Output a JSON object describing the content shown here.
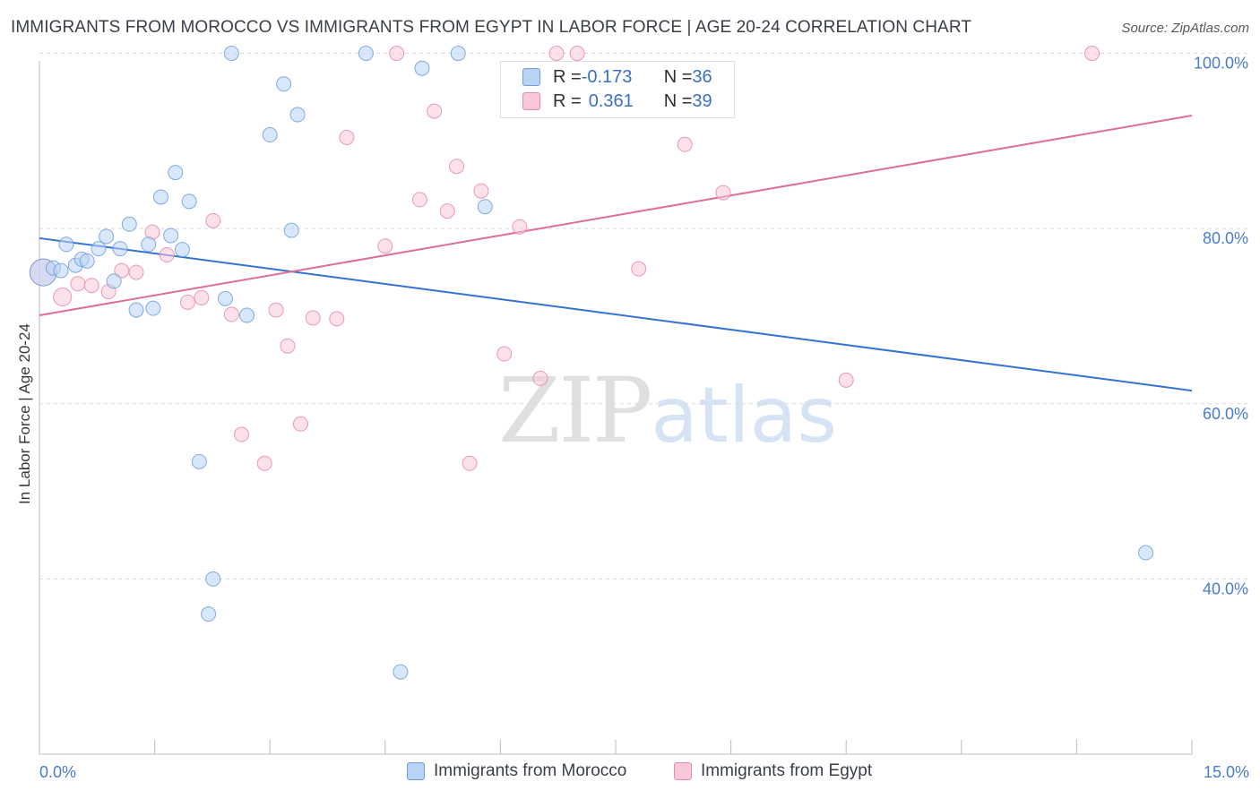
{
  "header": {
    "title": "IMMIGRANTS FROM MOROCCO VS IMMIGRANTS FROM EGYPT IN LABOR FORCE | AGE 20-24 CORRELATION CHART",
    "source": "Source: ZipAtlas.com"
  },
  "watermark": {
    "zip": "ZIP",
    "atlas": "atlas"
  },
  "stats": {
    "morocco": {
      "r_label": "R = ",
      "r_value": "-0.173",
      "n_label": "N = ",
      "n_value": "36"
    },
    "egypt": {
      "r_label": "R = ",
      "r_value": "0.361",
      "n_label": "N = ",
      "n_value": "39"
    }
  },
  "legend": {
    "morocco": "Immigrants from Morocco",
    "egypt": "Immigrants from Egypt"
  },
  "colors": {
    "morocco_fill": "#b9d3f5",
    "morocco_stroke": "#6f9edb",
    "morocco_line": "#3472d3",
    "egypt_fill": "#f8c8d8",
    "egypt_stroke": "#e88aa8",
    "egypt_line": "#e06e95",
    "tick_label": "#4a7cc9",
    "grid": "#d9dce1"
  },
  "chart_data": {
    "type": "scatter",
    "ylabel": "In Labor Force | Age 20-24",
    "xlim": [
      0,
      15
    ],
    "ylim": [
      20,
      102
    ],
    "x_tick_labels": {
      "min": "0.0%",
      "max": "15.0%"
    },
    "y_ticks": [
      {
        "value": 40,
        "label": "40.0%"
      },
      {
        "value": 60,
        "label": "60.0%"
      },
      {
        "value": 80,
        "label": "80.0%"
      },
      {
        "value": 100,
        "label": "100.0%"
      }
    ],
    "grid": "horizontal-dashed",
    "legend_position": "bottom",
    "series": [
      {
        "name": "Immigrants from Morocco",
        "key": "morocco",
        "trend": {
          "x": [
            0,
            15
          ],
          "y": [
            78.9,
            61.5
          ]
        },
        "points": [
          [
            0.05,
            75.0
          ],
          [
            0.18,
            75.5
          ],
          [
            0.28,
            75.2
          ],
          [
            0.35,
            78.2
          ],
          [
            0.47,
            75.8
          ],
          [
            0.55,
            76.5
          ],
          [
            0.62,
            76.3
          ],
          [
            0.87,
            79.1
          ],
          [
            0.77,
            77.7
          ],
          [
            0.97,
            74.0
          ],
          [
            1.05,
            77.7
          ],
          [
            1.17,
            80.5
          ],
          [
            1.26,
            70.7
          ],
          [
            1.42,
            78.2
          ],
          [
            1.48,
            70.9
          ],
          [
            1.58,
            83.6
          ],
          [
            1.71,
            79.2
          ],
          [
            1.77,
            86.4
          ],
          [
            1.86,
            77.6
          ],
          [
            1.95,
            83.1
          ],
          [
            2.08,
            53.4
          ],
          [
            2.26,
            40.0
          ],
          [
            2.2,
            36.0
          ],
          [
            2.42,
            72.0
          ],
          [
            2.5,
            100.0
          ],
          [
            2.7,
            70.1
          ],
          [
            3.0,
            90.7
          ],
          [
            3.18,
            96.5
          ],
          [
            3.28,
            79.8
          ],
          [
            3.36,
            93.0
          ],
          [
            4.25,
            100.0
          ],
          [
            4.7,
            29.4
          ],
          [
            4.98,
            98.3
          ],
          [
            5.45,
            100.0
          ],
          [
            5.8,
            82.5
          ],
          [
            14.4,
            43.0
          ]
        ]
      },
      {
        "name": "Immigrants from Egypt",
        "key": "egypt",
        "trend": {
          "x": [
            0,
            15
          ],
          "y": [
            70.1,
            92.9
          ]
        },
        "points": [
          [
            0.05,
            75.0
          ],
          [
            0.3,
            72.2
          ],
          [
            0.5,
            73.7
          ],
          [
            0.68,
            73.5
          ],
          [
            0.9,
            72.8
          ],
          [
            1.07,
            75.2
          ],
          [
            1.26,
            75.0
          ],
          [
            1.47,
            79.6
          ],
          [
            1.66,
            77.0
          ],
          [
            1.93,
            71.6
          ],
          [
            2.11,
            72.1
          ],
          [
            2.26,
            80.9
          ],
          [
            2.5,
            70.2
          ],
          [
            2.63,
            56.5
          ],
          [
            2.93,
            53.2
          ],
          [
            3.08,
            70.7
          ],
          [
            3.23,
            66.6
          ],
          [
            3.4,
            57.7
          ],
          [
            3.56,
            69.8
          ],
          [
            3.87,
            69.7
          ],
          [
            4.0,
            90.4
          ],
          [
            4.5,
            78.0
          ],
          [
            4.65,
            100.0
          ],
          [
            4.95,
            83.3
          ],
          [
            5.14,
            93.4
          ],
          [
            5.31,
            82.0
          ],
          [
            5.43,
            87.1
          ],
          [
            5.6,
            53.2
          ],
          [
            5.75,
            84.3
          ],
          [
            6.05,
            65.7
          ],
          [
            6.25,
            80.2
          ],
          [
            6.52,
            62.9
          ],
          [
            6.73,
            100.0
          ],
          [
            7.0,
            100.0
          ],
          [
            7.8,
            75.4
          ],
          [
            8.4,
            89.6
          ],
          [
            8.9,
            84.1
          ],
          [
            10.5,
            62.7
          ],
          [
            13.7,
            100.0
          ]
        ]
      }
    ]
  }
}
